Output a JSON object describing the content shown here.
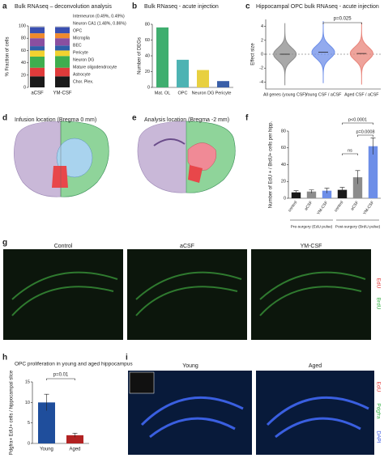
{
  "chart_data": [
    {
      "letter": "a",
      "type": "stacked_bar",
      "title": "Bulk RNAseq – deconvolution analysis",
      "ylabel": "% Fraction of cells",
      "categories": [
        "aCSF",
        "YM-CSF"
      ],
      "series": [
        {
          "name": "Chor. Plex.",
          "color": "#1a1a1a",
          "values": [
            18,
            18
          ]
        },
        {
          "name": "Astrocyte",
          "color": "#e03b3b",
          "values": [
            14,
            14
          ]
        },
        {
          "name": "Mature oligodendrocyte",
          "color": "#3fae4f",
          "values": [
            18,
            19
          ]
        },
        {
          "name": "Neuron DG",
          "color": "#f2d230",
          "values": [
            10,
            9
          ]
        },
        {
          "name": "Pericyte",
          "color": "#2f5fa8",
          "values": [
            7,
            8
          ]
        },
        {
          "name": "BEC",
          "color": "#8a4fa0",
          "values": [
            13,
            12
          ]
        },
        {
          "name": "Microglia",
          "color": "#f08a2c",
          "values": [
            8,
            8
          ]
        },
        {
          "name": "OPC",
          "color": "#3a4fb0",
          "values": [
            10,
            10
          ]
        },
        {
          "name": "Neuron CA1 (1.48%, 0.86%)",
          "color": "#d9d9d9",
          "values": [
            1.48,
            0.86
          ]
        },
        {
          "name": "Interneuron (0.49%, 0.49%)",
          "color": "#b0b0b0",
          "values": [
            0.49,
            0.49
          ]
        }
      ],
      "ylim": [
        0,
        100
      ],
      "yticks": [
        0,
        20,
        40,
        60,
        80,
        100
      ]
    },
    {
      "letter": "b",
      "type": "bar",
      "title": "Bulk RNaseq - acute injection",
      "ylabel": "Number of DEGs",
      "categories": [
        "Mat. OL",
        "OPC",
        "Neuron DG",
        "Pericyte"
      ],
      "values": [
        76,
        35,
        22,
        8
      ],
      "colors": [
        "#3fae6f",
        "#4db3b3",
        "#e8d040",
        "#3a5fa8"
      ],
      "ylim": [
        0,
        80
      ],
      "yticks": [
        0,
        20,
        40,
        60,
        80
      ]
    },
    {
      "letter": "c",
      "type": "violin",
      "title": "Hippocampal OPC bulk RNAseq - acute injection",
      "ylabel": "Effect size",
      "categories": [
        "All genes (young CSF)",
        "Young CSF / aCSF",
        "Aged CSF / aCSF"
      ],
      "values": [
        0,
        0.3,
        0.1
      ],
      "colors": [
        "#8c8c8c",
        "#6d8ee8",
        "#e8847a"
      ],
      "ylim": [
        -5,
        5
      ],
      "yticks": [
        -4,
        -2,
        0,
        2,
        4
      ],
      "annotations": [
        "p=0.025"
      ]
    },
    {
      "letter": "f",
      "type": "bar_error",
      "ylabel": "Number of EdU + / BrdU+ cells per hipp.",
      "categories": [
        "control",
        "aCSF",
        "YM-CSF",
        "control",
        "aCSF",
        "YM-CSF"
      ],
      "values": [
        7,
        8,
        9,
        10,
        25,
        62
      ],
      "errors": [
        2,
        2,
        3,
        3,
        8,
        10
      ],
      "colors": [
        "#1a1a1a",
        "#8c8c8c",
        "#6d8ee8",
        "#1a1a1a",
        "#8c8c8c",
        "#6d8ee8"
      ],
      "groups": [
        "Pre-surgery (EdU pulse)",
        "Post-surgery (BrdU pulse)"
      ],
      "ylim": [
        0,
        80
      ],
      "yticks": [
        0,
        20,
        40,
        60,
        80
      ],
      "annotations": [
        "p<0.0001",
        "ns",
        "p=0.0008"
      ]
    },
    {
      "letter": "h",
      "type": "bar_error",
      "title": "OPC proliferation in young and aged hippocampus",
      "ylabel": "Pdgfra+ EdU+ cells / hippocampal slice",
      "categories": [
        "Young",
        "Aged"
      ],
      "values": [
        10,
        2
      ],
      "errors": [
        2,
        0.5
      ],
      "colors": [
        "#1f4e9c",
        "#b22222"
      ],
      "ylim": [
        0,
        15
      ],
      "yticks": [
        0,
        5,
        10,
        15
      ],
      "annotations": [
        "p=0.01"
      ]
    }
  ],
  "image_panels": [
    {
      "letter": "d",
      "title": "Infusion location (Bregma 0 mm)"
    },
    {
      "letter": "e",
      "title": "Analysis location (Bregma -2 mm)"
    },
    {
      "letter": "g",
      "columns": [
        "Control",
        "aCSF",
        "YM-CSF"
      ],
      "channels": [
        "EdU",
        "BrdU"
      ]
    },
    {
      "letter": "i",
      "columns": [
        "Young",
        "Aged"
      ],
      "channels": [
        "EdU",
        "Pdgfra",
        "DAPI"
      ]
    }
  ]
}
